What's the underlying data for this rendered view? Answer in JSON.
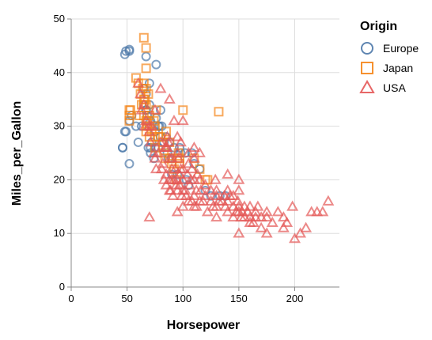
{
  "chart_data": {
    "type": "scatter",
    "xlabel": "Horsepower",
    "ylabel": "Miles_per_Gallon",
    "xlim": [
      0,
      240
    ],
    "ylim": [
      0,
      50
    ],
    "x_ticks": [
      0,
      50,
      100,
      150,
      200
    ],
    "y_ticks": [
      0,
      10,
      20,
      30,
      40,
      50
    ],
    "grid": true,
    "legend": {
      "title": "Origin",
      "placement": "right"
    },
    "series": [
      {
        "name": "Europe",
        "shape": "circle",
        "color": "#4c78a8",
        "points": [
          [
            46,
            26
          ],
          [
            46,
            26
          ],
          [
            48,
            29
          ],
          [
            49,
            29
          ],
          [
            52,
            31
          ],
          [
            49,
            44
          ],
          [
            48,
            43.4
          ],
          [
            52,
            44
          ],
          [
            52,
            44.3
          ],
          [
            52,
            23
          ],
          [
            54,
            32
          ],
          [
            58,
            30
          ],
          [
            60,
            27
          ],
          [
            63,
            30
          ],
          [
            65,
            37
          ],
          [
            67,
            33
          ],
          [
            67,
            36
          ],
          [
            67,
            33
          ],
          [
            68,
            32
          ],
          [
            69,
            26
          ],
          [
            70,
            34
          ],
          [
            71,
            31
          ],
          [
            71,
            26
          ],
          [
            71,
            25
          ],
          [
            72,
            27
          ],
          [
            74,
            24
          ],
          [
            75,
            29
          ],
          [
            75,
            26
          ],
          [
            76,
            41.5
          ],
          [
            76,
            31.5
          ],
          [
            78,
            30
          ],
          [
            78,
            26
          ],
          [
            79,
            30
          ],
          [
            80,
            28
          ],
          [
            80,
            33
          ],
          [
            81,
            30
          ],
          [
            83,
            27
          ],
          [
            85,
            28
          ],
          [
            86,
            25
          ],
          [
            87,
            24
          ],
          [
            88,
            27
          ],
          [
            90,
            24
          ],
          [
            90,
            21
          ],
          [
            92,
            26
          ],
          [
            95,
            21
          ],
          [
            97,
            26
          ],
          [
            98,
            25
          ],
          [
            102,
            25
          ],
          [
            103,
            20
          ],
          [
            105,
            19
          ],
          [
            108,
            25
          ],
          [
            110,
            23
          ],
          [
            115,
            22
          ],
          [
            120,
            18
          ],
          [
            125,
            17
          ],
          [
            133,
            17
          ],
          [
            138,
            17
          ],
          [
            67,
            43
          ],
          [
            65,
            34
          ],
          [
            70,
            38
          ]
        ]
      },
      {
        "name": "Japan",
        "shape": "square",
        "color": "#f58518",
        "points": [
          [
            52,
            33
          ],
          [
            52,
            32
          ],
          [
            52,
            31
          ],
          [
            53,
            33
          ],
          [
            58,
            39
          ],
          [
            60,
            38
          ],
          [
            61,
            32
          ],
          [
            62,
            36
          ],
          [
            63,
            34
          ],
          [
            64,
            37
          ],
          [
            65,
            46.5
          ],
          [
            65,
            38
          ],
          [
            65,
            35
          ],
          [
            65,
            32
          ],
          [
            66,
            35
          ],
          [
            67,
            44.6
          ],
          [
            67,
            40.8
          ],
          [
            67,
            37
          ],
          [
            67,
            34
          ],
          [
            67,
            31
          ],
          [
            67,
            29
          ],
          [
            68,
            31
          ],
          [
            68,
            30
          ],
          [
            69,
            36
          ],
          [
            70,
            32
          ],
          [
            70,
            28
          ],
          [
            70,
            30
          ],
          [
            72,
            29
          ],
          [
            74,
            31
          ],
          [
            75,
            28
          ],
          [
            75,
            26
          ],
          [
            75,
            30
          ],
          [
            76,
            33
          ],
          [
            78,
            28
          ],
          [
            80,
            28
          ],
          [
            82,
            27
          ],
          [
            83,
            25
          ],
          [
            84,
            24
          ],
          [
            85,
            29
          ],
          [
            88,
            24
          ],
          [
            90,
            23
          ],
          [
            92,
            22
          ],
          [
            94,
            20
          ],
          [
            95,
            24
          ],
          [
            97,
            24
          ],
          [
            97,
            23
          ],
          [
            100,
            33
          ],
          [
            110,
            24
          ],
          [
            115,
            22
          ],
          [
            120,
            20
          ],
          [
            122,
            20
          ],
          [
            132,
            32.7
          ],
          [
            88,
            27
          ],
          [
            96,
            25
          ],
          [
            65,
            34
          ]
        ]
      },
      {
        "name": "USA",
        "shape": "triangle",
        "color": "#e45756",
        "points": [
          [
            60,
            38
          ],
          [
            62,
            36
          ],
          [
            63,
            33
          ],
          [
            65,
            34
          ],
          [
            66,
            30
          ],
          [
            67,
            31
          ],
          [
            70,
            29
          ],
          [
            71,
            27
          ],
          [
            72,
            30
          ],
          [
            74,
            25
          ],
          [
            75,
            24
          ],
          [
            76,
            22
          ],
          [
            78,
            25
          ],
          [
            80,
            27
          ],
          [
            81,
            22
          ],
          [
            82,
            23
          ],
          [
            83,
            20
          ],
          [
            84,
            26
          ],
          [
            85,
            26
          ],
          [
            85,
            19
          ],
          [
            86,
            28
          ],
          [
            86,
            26
          ],
          [
            87,
            27
          ],
          [
            88,
            24
          ],
          [
            88,
            18
          ],
          [
            88,
            20
          ],
          [
            89,
            18
          ],
          [
            90,
            20
          ],
          [
            90,
            24
          ],
          [
            90,
            22
          ],
          [
            91,
            17
          ],
          [
            92,
            20
          ],
          [
            93,
            22
          ],
          [
            94,
            19
          ],
          [
            95,
            20
          ],
          [
            95,
            25
          ],
          [
            95,
            28
          ],
          [
            96,
            24
          ],
          [
            97,
            21
          ],
          [
            97,
            19
          ],
          [
            98,
            27
          ],
          [
            98,
            22
          ],
          [
            99,
            17
          ],
          [
            100,
            20
          ],
          [
            100,
            15
          ],
          [
            100,
            18
          ],
          [
            100,
            22
          ],
          [
            102,
            18
          ],
          [
            103,
            17
          ],
          [
            104,
            21
          ],
          [
            105,
            16
          ],
          [
            105,
            23
          ],
          [
            106,
            19
          ],
          [
            107,
            20
          ],
          [
            108,
            16
          ],
          [
            108,
            22
          ],
          [
            110,
            17
          ],
          [
            110,
            20
          ],
          [
            110,
            24
          ],
          [
            112,
            18
          ],
          [
            112,
            15
          ],
          [
            113,
            21
          ],
          [
            115,
            16
          ],
          [
            115,
            20
          ],
          [
            115,
            25
          ],
          [
            116,
            18
          ],
          [
            118,
            16
          ],
          [
            120,
            17
          ],
          [
            120,
            19
          ],
          [
            122,
            14
          ],
          [
            125,
            16
          ],
          [
            125,
            18
          ],
          [
            127,
            15
          ],
          [
            129,
            20
          ],
          [
            130,
            17
          ],
          [
            130,
            15
          ],
          [
            130,
            13
          ],
          [
            132,
            16
          ],
          [
            135,
            16
          ],
          [
            137,
            17
          ],
          [
            138,
            15
          ],
          [
            140,
            18
          ],
          [
            140,
            14
          ],
          [
            140,
            16
          ],
          [
            142,
            17
          ],
          [
            145,
            13
          ],
          [
            145,
            15
          ],
          [
            148,
            14
          ],
          [
            149,
            16
          ],
          [
            150,
            14
          ],
          [
            150,
            15
          ],
          [
            150,
            18
          ],
          [
            152,
            13
          ],
          [
            153,
            14
          ],
          [
            155,
            13
          ],
          [
            155,
            15
          ],
          [
            158,
            14
          ],
          [
            160,
            15
          ],
          [
            160,
            13
          ],
          [
            163,
            12
          ],
          [
            165,
            14
          ],
          [
            165,
            13
          ],
          [
            167,
            15
          ],
          [
            170,
            13
          ],
          [
            170,
            11
          ],
          [
            175,
            14
          ],
          [
            175,
            13
          ],
          [
            180,
            12
          ],
          [
            190,
            13
          ],
          [
            193,
            12
          ],
          [
            198,
            15
          ],
          [
            200,
            9
          ],
          [
            210,
            11
          ],
          [
            215,
            14
          ],
          [
            220,
            14
          ],
          [
            225,
            14
          ],
          [
            230,
            16
          ],
          [
            85,
            21
          ],
          [
            95,
            18
          ],
          [
            92,
            31
          ],
          [
            88,
            35
          ],
          [
            80,
            37
          ],
          [
            100,
            31
          ],
          [
            75,
            33
          ],
          [
            70,
            30
          ],
          [
            105,
            25
          ],
          [
            110,
            26
          ],
          [
            70,
            13
          ],
          [
            95,
            14
          ],
          [
            150,
            20
          ],
          [
            140,
            21
          ],
          [
            130,
            18
          ],
          [
            145,
            17
          ],
          [
            160,
            12
          ],
          [
            175,
            10
          ],
          [
            190,
            11
          ],
          [
            185,
            14
          ],
          [
            205,
            10
          ],
          [
            150,
            10
          ],
          [
            110,
            15
          ]
        ]
      }
    ]
  }
}
